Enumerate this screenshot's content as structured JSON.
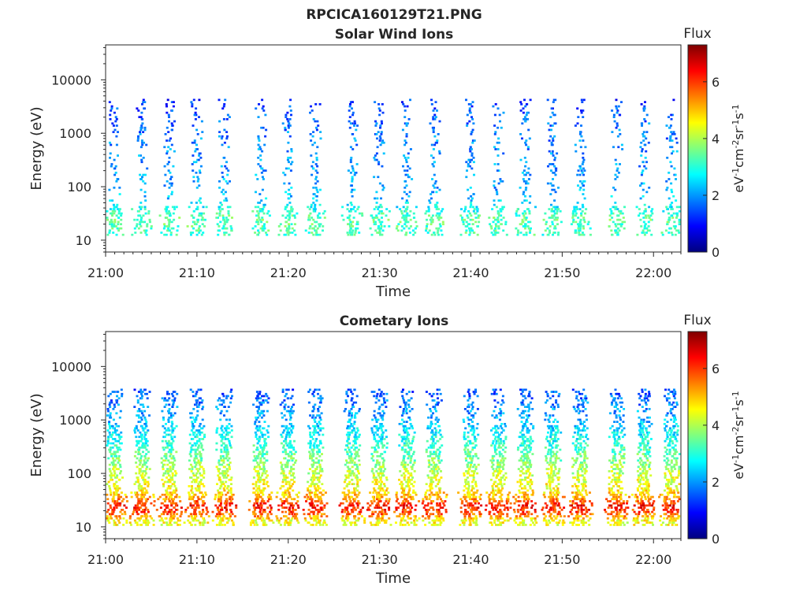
{
  "figure_title": "RPCICA160129T21.PNG",
  "colorscale": [
    "#00007f",
    "#0000ff",
    "#007fff",
    "#00ffff",
    "#7fff7f",
    "#ffff00",
    "#ff7f00",
    "#ff0000",
    "#7f0000"
  ],
  "chart_data": [
    {
      "type": "heatmap",
      "title": "Solar Wind Ions",
      "xlabel": "Time",
      "ylabel": "Energy (eV)",
      "y_scale": "log",
      "ylim": [
        6,
        45000
      ],
      "xlim": [
        "21:00",
        "22:03"
      ],
      "x_ticks": [
        "21:00",
        "21:10",
        "21:20",
        "21:30",
        "21:40",
        "21:50",
        "22:00"
      ],
      "y_ticks": [
        {
          "value": 10,
          "label": "10"
        },
        {
          "value": 100,
          "label": "100"
        },
        {
          "value": 1000,
          "label": "1000"
        },
        {
          "value": 10000,
          "label": "10000"
        }
      ],
      "colorbar": {
        "label": "Flux",
        "units": "eV-1cm-2sr-1s-1",
        "min": 0,
        "max": 7.3,
        "ticks": [
          "0",
          "2",
          "4",
          "6"
        ]
      },
      "sweep_times": [
        "21:01",
        "21:04",
        "21:07",
        "21:10",
        "21:13",
        "21:17",
        "21:20",
        "21:23",
        "21:27",
        "21:30",
        "21:33",
        "21:36",
        "21:40",
        "21:43",
        "21:46",
        "21:49",
        "21:52",
        "21:56",
        "21:59",
        "22:02"
      ],
      "flux_profile": [
        {
          "energy": 15,
          "flux": 3.2
        },
        {
          "energy": 25,
          "flux": 3.4
        },
        {
          "energy": 35,
          "flux": 3.0
        },
        {
          "energy": 60,
          "flux": 2.3
        },
        {
          "energy": 100,
          "flux": 2.1
        },
        {
          "energy": 200,
          "flux": 2.0
        },
        {
          "energy": 400,
          "flux": 1.9
        },
        {
          "energy": 800,
          "flux": 1.8
        },
        {
          "energy": 1500,
          "flux": 1.7
        },
        {
          "energy": 2500,
          "flux": 1.5
        },
        {
          "energy": 4000,
          "flux": 1.3
        }
      ]
    },
    {
      "type": "heatmap",
      "title": "Cometary Ions",
      "xlabel": "Time",
      "ylabel": "Energy (eV)",
      "y_scale": "log",
      "ylim": [
        6,
        45000
      ],
      "xlim": [
        "21:00",
        "22:03"
      ],
      "x_ticks": [
        "21:00",
        "21:10",
        "21:20",
        "21:30",
        "21:40",
        "21:50",
        "22:00"
      ],
      "y_ticks": [
        {
          "value": 10,
          "label": "10"
        },
        {
          "value": 100,
          "label": "100"
        },
        {
          "value": 1000,
          "label": "1000"
        },
        {
          "value": 10000,
          "label": "10000"
        }
      ],
      "colorbar": {
        "label": "Flux",
        "units": "eV-1cm-2sr-1s-1",
        "min": 0,
        "max": 7.3,
        "ticks": [
          "0",
          "2",
          "4",
          "6"
        ]
      },
      "sweep_times": [
        "21:01",
        "21:04",
        "21:07",
        "21:10",
        "21:13",
        "21:17",
        "21:20",
        "21:23",
        "21:27",
        "21:30",
        "21:33",
        "21:36",
        "21:40",
        "21:43",
        "21:46",
        "21:49",
        "21:52",
        "21:56",
        "21:59",
        "22:02"
      ],
      "flux_profile": [
        {
          "energy": 13,
          "flux": 4.5
        },
        {
          "energy": 18,
          "flux": 5.8
        },
        {
          "energy": 25,
          "flux": 6.3
        },
        {
          "energy": 35,
          "flux": 5.2
        },
        {
          "energy": 50,
          "flux": 4.6
        },
        {
          "energy": 80,
          "flux": 4.3
        },
        {
          "energy": 120,
          "flux": 4.0
        },
        {
          "energy": 200,
          "flux": 3.5
        },
        {
          "energy": 350,
          "flux": 3.0
        },
        {
          "energy": 600,
          "flux": 2.6
        },
        {
          "energy": 1000,
          "flux": 2.2
        },
        {
          "energy": 2000,
          "flux": 1.8
        },
        {
          "energy": 3500,
          "flux": 1.5
        }
      ]
    }
  ]
}
